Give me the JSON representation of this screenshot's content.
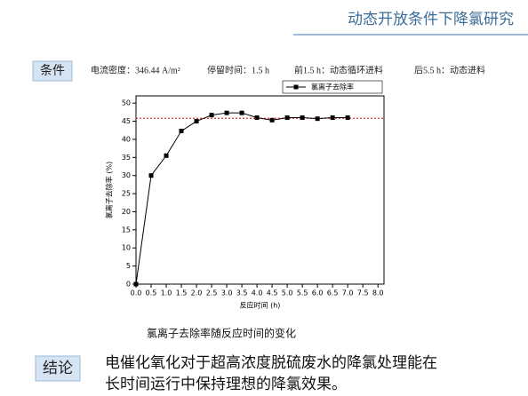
{
  "slide": {
    "title": "动态开放条件下降氯研究",
    "condition_label": "条件",
    "conditions": [
      "电流密度：346.44 A/m²",
      "停留时间：1.5 h",
      "前1.5 h：动态循环进料",
      "后5.5 h：动态进料"
    ],
    "caption": "氯离子去除率随反应时间的变化",
    "conclusion_label": "结论",
    "conclusion_lines": [
      "电催化氧化对于超高浓度脱硫废水的降氯处理能在",
      "长时间运行中保持理想的降氯效果。"
    ]
  },
  "chart_data": {
    "type": "line",
    "x_label": "反应时间 (h)",
    "y_label": "氯离子去除率 (%)",
    "x": [
      0,
      0.5,
      1,
      1.5,
      2,
      2.5,
      3,
      3.5,
      4,
      4.5,
      5,
      5.5,
      6,
      6.5,
      7
    ],
    "series": [
      {
        "name": "氯离子去除率",
        "color": "#000000",
        "values": [
          0,
          30,
          35.5,
          42.3,
          45,
          46.7,
          47.3,
          47.3,
          46,
          45.3,
          46,
          46,
          45.7,
          46,
          46
        ]
      }
    ],
    "reference_line": {
      "value": 45.8,
      "color": "#d9302c"
    },
    "xlim": [
      0,
      8.2
    ],
    "xticks": [
      {
        "value": 0,
        "label": "0.0"
      },
      {
        "value": 0.5,
        "label": "0.5"
      },
      {
        "value": 1,
        "label": "1.0"
      },
      {
        "value": 1.5,
        "label": "1.5"
      },
      {
        "value": 2,
        "label": "2.0"
      },
      {
        "value": 2.5,
        "label": "2.5"
      },
      {
        "value": 3,
        "label": "3.0"
      },
      {
        "value": 3.5,
        "label": "3.5"
      },
      {
        "value": 4,
        "label": "4.0"
      },
      {
        "value": 4.5,
        "label": "4.5"
      },
      {
        "value": 5,
        "label": "5.0"
      },
      {
        "value": 5.5,
        "label": "5.5"
      },
      {
        "value": 6,
        "label": "6.0"
      },
      {
        "value": 6.5,
        "label": "6.5"
      },
      {
        "value": 7,
        "label": "7.0"
      },
      {
        "value": 7.5,
        "label": "7.5"
      },
      {
        "value": 8,
        "label": "8.0"
      }
    ],
    "ylim": [
      0,
      52
    ],
    "yticks": [
      0,
      5,
      10,
      15,
      20,
      25,
      30,
      35,
      40,
      45,
      50
    ],
    "legend": "top-right",
    "grid": false
  }
}
